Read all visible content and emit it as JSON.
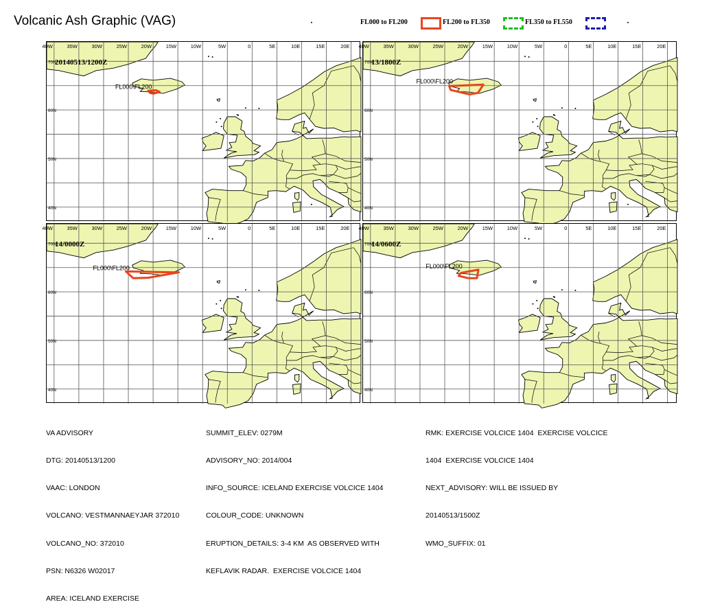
{
  "title": "Volcanic Ash Graphic (VAG)",
  "legend": [
    {
      "label": "FL000 to FL200",
      "color": "#e8451e",
      "style": "solid"
    },
    {
      "label": "FL200 to FL350",
      "color": "#22bb22",
      "style": "dashed"
    },
    {
      "label": "FL350 to FL550",
      "color": "#1c1ca8",
      "style": "dashed"
    }
  ],
  "colors": {
    "land": "#eef5b0",
    "ash": "#e8451e",
    "grid": "#555555"
  },
  "map": {
    "lon_labels": [
      "40W",
      "35W",
      "30W",
      "25W",
      "20W",
      "15W",
      "10W",
      "5W",
      "0",
      "5E",
      "10E",
      "15E",
      "20E"
    ],
    "lat_labels": [
      "70N",
      "60N",
      "50N",
      "40N"
    ]
  },
  "panels": [
    {
      "time": "20140513/1200Z",
      "ash_label": "FL000\\FL200",
      "ash_polygon": [
        [
          -21.0,
          63.95
        ],
        [
          -19.4,
          64.05
        ],
        [
          -18.7,
          63.7
        ],
        [
          -19.9,
          63.35
        ],
        [
          -20.6,
          63.5
        ]
      ]
    },
    {
      "time": "13/1800Z",
      "ash_label": "FL000\\FL200",
      "ash_polygon": [
        [
          -24.1,
          64.9
        ],
        [
          -17.2,
          65.2
        ],
        [
          -18.3,
          63.5
        ],
        [
          -20.0,
          63.2
        ],
        [
          -23.8,
          64.1
        ]
      ]
    },
    {
      "time": "14/0000Z",
      "ash_label": "FL000\\FL200",
      "ash_polygon": [
        [
          -25.5,
          64.2
        ],
        [
          -14.8,
          64.0
        ],
        [
          -21.0,
          62.9
        ],
        [
          -24.0,
          62.8
        ]
      ]
    },
    {
      "time": "14/0600Z",
      "ash_label": "FL000\\FL200",
      "ash_polygon": [
        [
          -21.7,
          63.9
        ],
        [
          -18.2,
          64.55
        ],
        [
          -18.5,
          62.8
        ],
        [
          -20.2,
          62.8
        ],
        [
          -22.2,
          63.3
        ]
      ]
    }
  ],
  "advisory": {
    "col1": [
      "VA ADVISORY",
      "DTG: 20140513/1200",
      "VAAC: LONDON",
      "VOLCANO: VESTMANNAEYJAR 372010",
      "VOLCANO_NO: 372010",
      "PSN: N6326 W02017",
      "AREA: ICELAND EXERCISE"
    ],
    "col2": [
      "SUMMIT_ELEV: 0279M",
      "ADVISORY_NO: 2014/004",
      "INFO_SOURCE: ICELAND EXERCISE VOLCICE 1404",
      "COLOUR_CODE: UNKNOWN",
      "ERUPTION_DETAILS: 3-4 KM  AS OBSERVED WITH",
      "KEFLAVIK RADAR.  EXERCISE VOLCICE 1404"
    ],
    "col3": [
      "RMK: EXERCISE VOLCICE 1404  EXERCISE VOLCICE",
      "1404  EXERCISE VOLCICE 1404",
      "NEXT_ADVISORY: WILL BE ISSUED BY",
      "20140513/1500Z",
      "WMO_SUFFIX: 01"
    ]
  }
}
